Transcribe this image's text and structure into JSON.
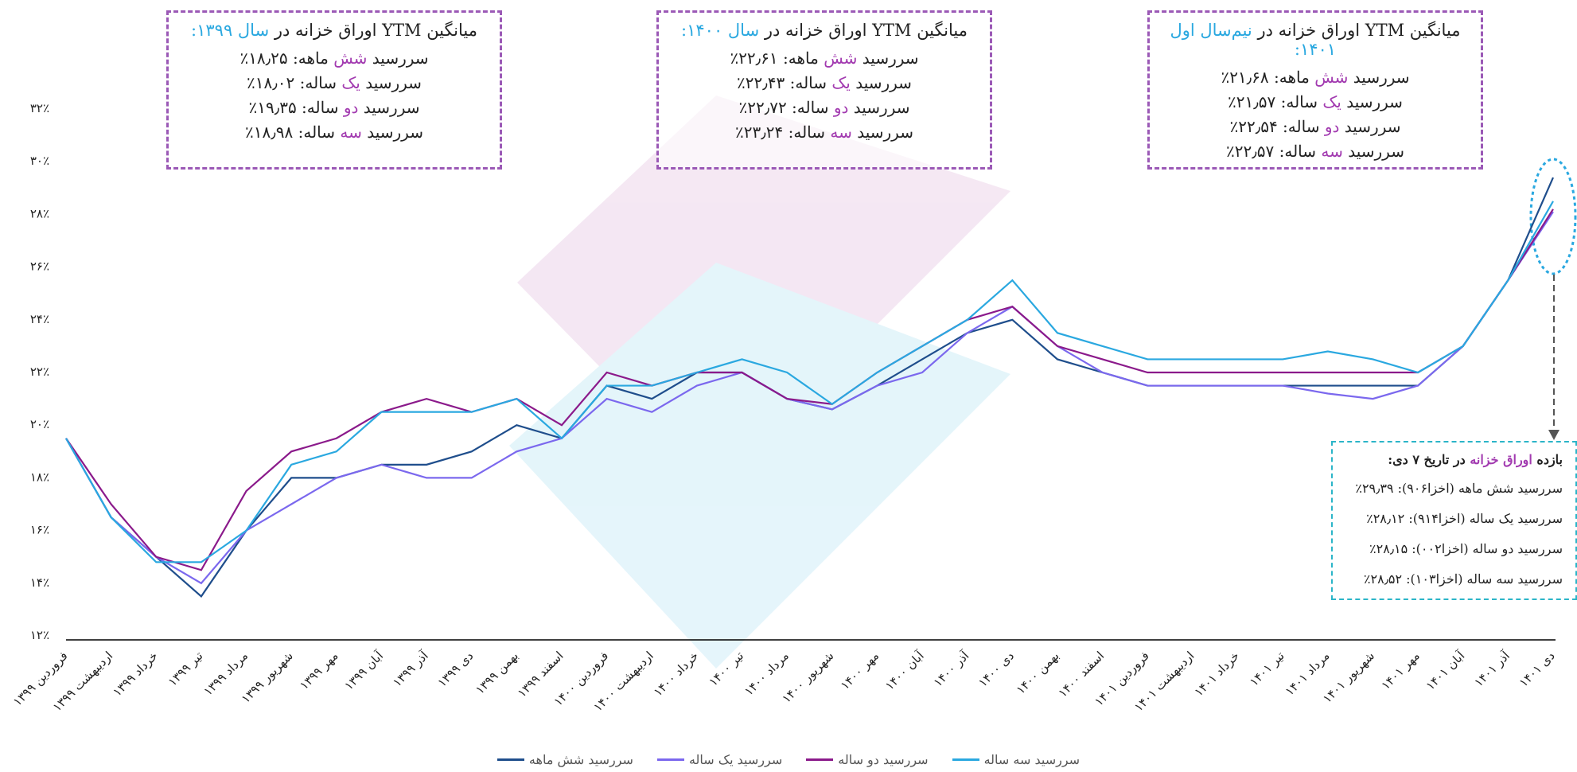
{
  "chart_data": {
    "type": "line",
    "categories": [
      "فروردین ۱۳۹۹",
      "اردیبهشت ۱۳۹۹",
      "خرداد ۱۳۹۹",
      "تیر ۱۳۹۹",
      "مرداد ۱۳۹۹",
      "شهریور ۱۳۹۹",
      "مهر ۱۳۹۹",
      "آبان ۱۳۹۹",
      "آذر ۱۳۹۹",
      "دی ۱۳۹۹",
      "بهمن ۱۳۹۹",
      "اسفند ۱۳۹۹",
      "فروردین ۱۴۰۰",
      "اردیبهشت ۱۴۰۰",
      "خرداد ۱۴۰۰",
      "تیر ۱۴۰۰",
      "مرداد ۱۴۰۰",
      "شهریور ۱۴۰۰",
      "مهر ۱۴۰۰",
      "آبان ۱۴۰۰",
      "آذر ۱۴۰۰",
      "دی ۱۴۰۰",
      "بهمن ۱۴۰۰",
      "اسفند ۱۴۰۰",
      "فروردین ۱۴۰۱",
      "اردیبهشت ۱۴۰۱",
      "خرداد ۱۴۰۱",
      "تیر ۱۴۰۱",
      "مرداد ۱۴۰۱",
      "شهریور ۱۴۰۱",
      "مهر ۱۴۰۱",
      "آبان ۱۴۰۱",
      "آذر ۱۴۰۱",
      "دی ۱۴۰۱"
    ],
    "series": [
      {
        "name": "سررسید شش ماهه",
        "color": "#1f4e8c",
        "values": [
          19.5,
          16.5,
          15,
          13.5,
          16,
          18,
          18,
          18.5,
          18.5,
          19,
          20,
          19.5,
          21.5,
          21,
          22,
          22,
          21,
          20.6,
          21.5,
          22.5,
          23.5,
          24,
          22.5,
          22,
          21.5,
          21.5,
          21.5,
          21.5,
          21.5,
          21.5,
          21.5,
          23,
          25.5,
          29.4
        ]
      },
      {
        "name": "سررسید یک ساله",
        "color": "#7b68ee",
        "values": [
          19.5,
          16.5,
          15,
          14,
          16,
          17,
          18,
          18.5,
          18,
          18,
          19,
          19.5,
          21,
          20.5,
          21.5,
          22,
          21,
          20.6,
          21.5,
          22,
          23.5,
          24.5,
          23,
          22,
          21.5,
          21.5,
          21.5,
          21.5,
          21.2,
          21,
          21.5,
          23,
          25.5,
          28.1
        ]
      },
      {
        "name": "سررسید دو ساله",
        "color": "#8b1a8b",
        "values": [
          19.5,
          17,
          15,
          14.5,
          17.5,
          19,
          19.5,
          20.5,
          21,
          20.5,
          21,
          20,
          22,
          21.5,
          22,
          22,
          21,
          20.8,
          22,
          23,
          24,
          24.5,
          23,
          22.5,
          22,
          22,
          22,
          22,
          22,
          22,
          22,
          23,
          25.5,
          28.2
        ]
      },
      {
        "name": "سررسید سه ساله",
        "color": "#2aa8e0",
        "values": [
          19.5,
          16.5,
          14.8,
          14.8,
          16,
          18.5,
          19,
          20.5,
          20.5,
          20.5,
          21,
          19.5,
          21.5,
          21.5,
          22,
          22.5,
          22,
          20.8,
          22,
          23,
          24,
          25.5,
          23.5,
          23,
          22.5,
          22.5,
          22.5,
          22.5,
          22.8,
          22.5,
          22,
          23,
          25.5,
          28.5
        ]
      }
    ],
    "ylim": [
      12,
      32
    ],
    "yticks": [
      {
        "value": 12,
        "label": "۱۲٪"
      },
      {
        "value": 14,
        "label": "۱۴٪"
      },
      {
        "value": 16,
        "label": "۱۶٪"
      },
      {
        "value": 18,
        "label": "۱۸٪"
      },
      {
        "value": 20,
        "label": "۲۰٪"
      },
      {
        "value": 22,
        "label": "۲۲٪"
      },
      {
        "value": 24,
        "label": "۲۴٪"
      },
      {
        "value": 26,
        "label": "۲۶٪"
      },
      {
        "value": 28,
        "label": "۲۸٪"
      },
      {
        "value": 30,
        "label": "۳۰٪"
      },
      {
        "value": 32,
        "label": "۳۲٪"
      }
    ],
    "grid": false
  },
  "boxes": [
    {
      "title": [
        "میانگین YTM اوراق خزانه در ",
        "سال ۱۳۹۹:"
      ],
      "rows": [
        [
          "سررسید ",
          "شش",
          " ماهه: ۱۸٫۲۵٪"
        ],
        [
          "سررسید ",
          "یک",
          " ساله: ۱۸٫۰۲٪"
        ],
        [
          "سررسید ",
          "دو",
          " ساله: ۱۹٫۳۵٪"
        ],
        [
          "سررسید ",
          "سه",
          " ساله: ۱۸٫۹۸٪"
        ]
      ]
    },
    {
      "title": [
        "میانگین YTM اوراق خزانه در ",
        "سال ۱۴۰۰:"
      ],
      "rows": [
        [
          "سررسید ",
          "شش",
          " ماهه: ۲۲٫۶۱٪"
        ],
        [
          "سررسید ",
          "یک",
          " ساله: ۲۲٫۴۳٪"
        ],
        [
          "سررسید ",
          "دو",
          " ساله: ۲۲٫۷۲٪"
        ],
        [
          "سررسید ",
          "سه",
          " ساله: ۲۳٫۲۴٪"
        ]
      ]
    },
    {
      "title": [
        "میانگین YTM اوراق خزانه در ",
        "نیم‌سال اول ۱۴۰۱:"
      ],
      "rows": [
        [
          "سررسید ",
          "شش",
          " ماهه: ۲۱٫۶۸٪"
        ],
        [
          "سررسید ",
          "یک",
          " ساله: ۲۱٫۵۷٪"
        ],
        [
          "سررسید ",
          "دو",
          " ساله: ۲۲٫۵۴٪"
        ],
        [
          "سررسید ",
          "سه",
          " ساله: ۲۲٫۵۷٪"
        ]
      ]
    }
  ],
  "note": {
    "title": [
      "بازده ",
      "اوراق خزانه",
      " در تاریخ ۷ دی:"
    ],
    "rows": [
      "سررسید شش ماهه (اخزا۹۰۶): ۲۹٫۳۹٪",
      "سررسید یک ساله (اخزا۹۱۴): ۲۸٫۱۲٪",
      "سررسید دو ساله (اخزا۰۰۲): ۲۸٫۱۵٪",
      "سررسید سه ساله (اخزا۱۰۳): ۲۸٫۵۲٪"
    ]
  }
}
